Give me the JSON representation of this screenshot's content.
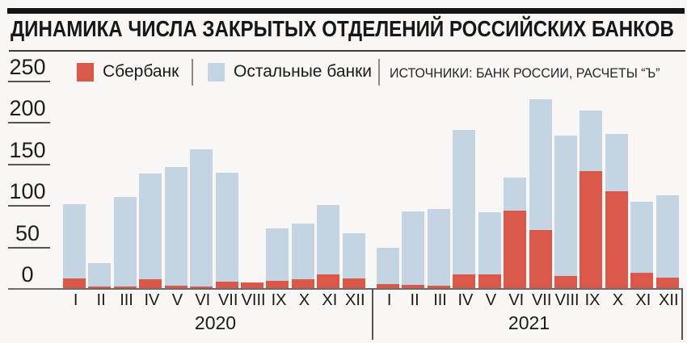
{
  "title": "ДИНАМИКА ЧИСЛА ЗАКРЫТЫХ ОТДЕЛЕНИЙ РОССИЙСКИХ БАНКОВ",
  "legend": {
    "sberbank_label": "Сбербанк",
    "others_label": "Остальные банки",
    "source_label": "ИСТОЧНИКИ: БАНК РОССИИ, РАСЧЕТЫ “Ъ”"
  },
  "colors": {
    "sberbank": "#d9584a",
    "other_banks": "#c5d4e3",
    "axis": "#6b6b6b"
  },
  "chart_data": {
    "type": "bar",
    "title": "ДИНАМИКА ЧИСЛА ЗАКРЫТЫХ ОТДЕЛЕНИЙ РОССИЙСКИХ БАНКОВ",
    "source": "ИСТОЧНИКИ: БАНК РОССИИ, РАСЧЕТЫ “Ъ”",
    "ylim": [
      0,
      250
    ],
    "yticks": [
      0,
      50,
      100,
      150,
      200,
      250
    ],
    "grid": "left tick stubs only",
    "legend_position": "top",
    "bar_style": "overlay: Сбербанк (red) drawn from zero in front of Остальные банки (blue)",
    "months": [
      "I",
      "II",
      "III",
      "IV",
      "V",
      "VI",
      "VII",
      "VIII",
      "IX",
      "X",
      "XI",
      "XII"
    ],
    "groups": [
      {
        "year": "2020",
        "series": [
          {
            "name": "Сбербанк",
            "values": [
              12,
              2,
              2,
              11,
              3,
              2,
              8,
              7,
              9,
              11,
              17,
              12
            ]
          },
          {
            "name": "Остальные банки",
            "values": [
              101,
              30,
              110,
              138,
              146,
              167,
              139,
              0,
              72,
              78,
              100,
              66
            ]
          }
        ]
      },
      {
        "year": "2021",
        "series": [
          {
            "name": "Сбербанк",
            "values": [
              5,
              4,
              3,
              17,
              17,
              93,
              70,
              15,
              141,
              117,
              18,
              13
            ]
          },
          {
            "name": "Остальные банки",
            "values": [
              49,
              92,
              95,
              191,
              91,
              133,
              228,
              184,
              214,
              186,
              104,
              112
            ]
          }
        ]
      }
    ]
  }
}
